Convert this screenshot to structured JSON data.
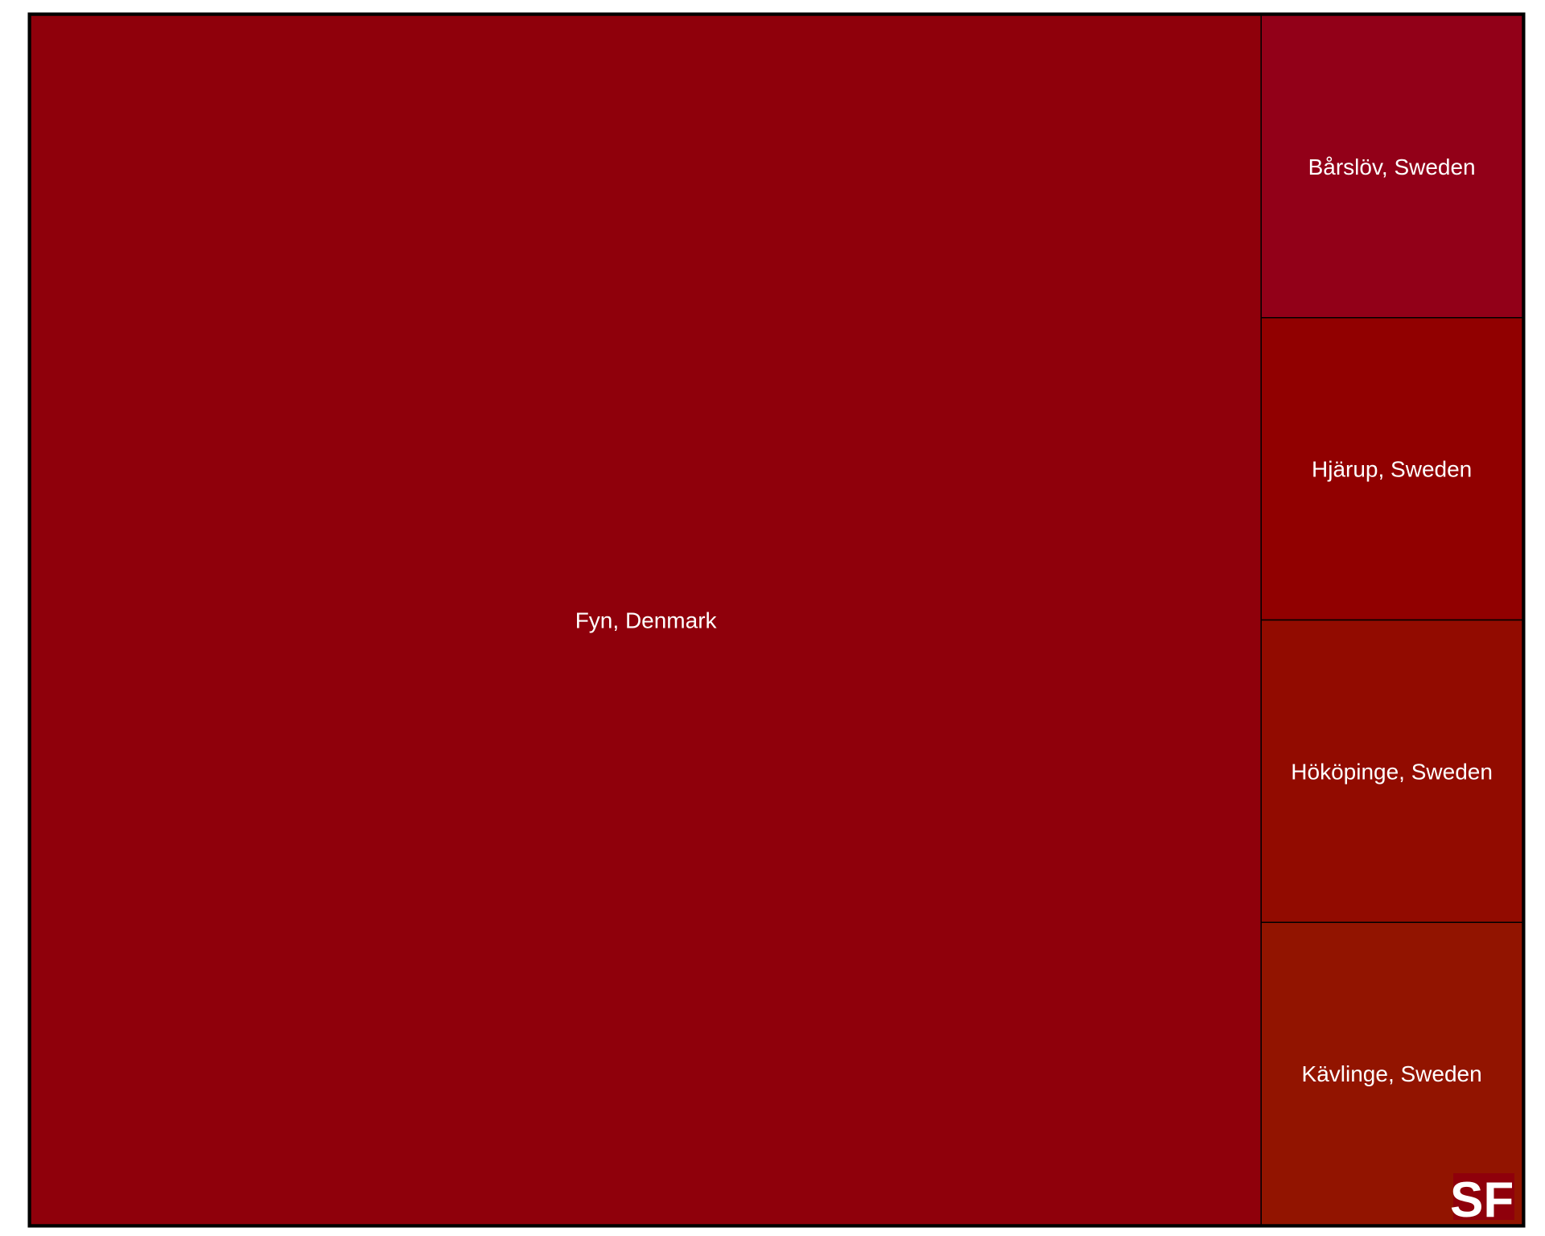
{
  "chart_data": {
    "type": "treemap",
    "items": [
      {
        "label": "Fyn, Denmark",
        "value": 82.5,
        "color": "#8f000b"
      },
      {
        "label": "Bårslöv, Sweden",
        "value": 4.38,
        "color": "#920018"
      },
      {
        "label": "Hjärup, Sweden",
        "value": 4.38,
        "color": "#910000"
      },
      {
        "label": "Hököpinge, Sweden",
        "value": 4.38,
        "color": "#920b00"
      },
      {
        "label": "Kävlinge, Sweden",
        "value": 4.38,
        "color": "#921400"
      }
    ],
    "logo": {
      "text": "SF",
      "color": "#8f000b"
    },
    "border_color": "#000000"
  }
}
